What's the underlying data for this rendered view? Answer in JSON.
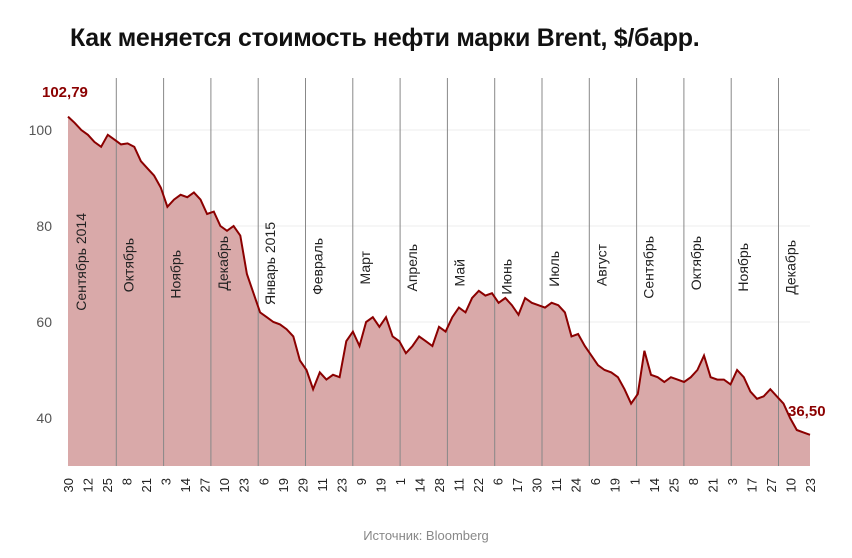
{
  "title": "Как меняется стоимость нефти марки Brent, $/барр.",
  "source": "Источник: Bloomberg",
  "colors": {
    "line": "#8b0000",
    "fill": "#d9a9a9",
    "month_divider": "#888888",
    "grid": "#eeeeee"
  },
  "chart_data": {
    "type": "area",
    "title": "Как меняется стоимость нефти марки Brent, $/барр.",
    "ylim": [
      30,
      105
    ],
    "yticks": [
      40,
      60,
      80,
      100
    ],
    "start_label": "102,79",
    "end_label": "36,50",
    "months": [
      "Сентябрь 2014",
      "Октябрь",
      "Ноябрь",
      "Декабрь",
      "Январь 2015",
      "Февраль",
      "Март",
      "Апрель",
      "Май",
      "Июнь",
      "Июль",
      "Август",
      "Сентябрь",
      "Октябрь",
      "Ноябрь",
      "Декабрь"
    ],
    "xtick_labels": [
      "30",
      "12",
      "25",
      "8",
      "21",
      "3",
      "14",
      "27",
      "10",
      "23",
      "6",
      "19",
      "29",
      "11",
      "23",
      "9",
      "19",
      "1",
      "14",
      "28",
      "11",
      "22",
      "6",
      "17",
      "30",
      "11",
      "24",
      "6",
      "19",
      "1",
      "14",
      "25",
      "8",
      "21",
      "3",
      "17",
      "27",
      "10",
      "23"
    ],
    "series": [
      {
        "values": [
          102.8,
          101.5,
          100,
          99,
          97.5,
          96.5,
          99,
          98,
          97,
          97.2,
          96.5,
          93.5,
          92,
          90.5,
          88,
          84,
          85.5,
          86.5,
          86,
          87,
          85.5,
          82.5,
          83,
          80,
          79,
          80,
          78,
          70,
          66,
          62,
          61,
          60,
          59.5,
          58.5,
          57,
          52,
          50,
          46,
          49.5,
          48,
          49,
          48.5,
          56,
          58,
          55,
          60,
          61,
          59,
          61,
          57,
          56,
          53.5,
          55,
          57,
          56,
          55,
          59,
          58,
          61,
          63,
          62,
          65,
          66.5,
          65.5,
          66,
          64,
          65,
          63.5,
          61.5,
          65,
          64,
          63.5,
          63,
          64,
          63.5,
          62,
          57,
          57.5,
          55,
          53,
          51,
          50,
          49.5,
          48.5,
          46,
          43,
          45,
          54,
          49,
          48.5,
          47.5,
          48.5,
          48,
          47.5,
          48.5,
          50,
          53,
          48.5,
          48,
          48,
          47,
          50,
          48.5,
          45.5,
          44,
          44.5,
          46,
          44.5,
          43,
          40,
          37.5,
          37,
          36.5
        ]
      }
    ]
  }
}
